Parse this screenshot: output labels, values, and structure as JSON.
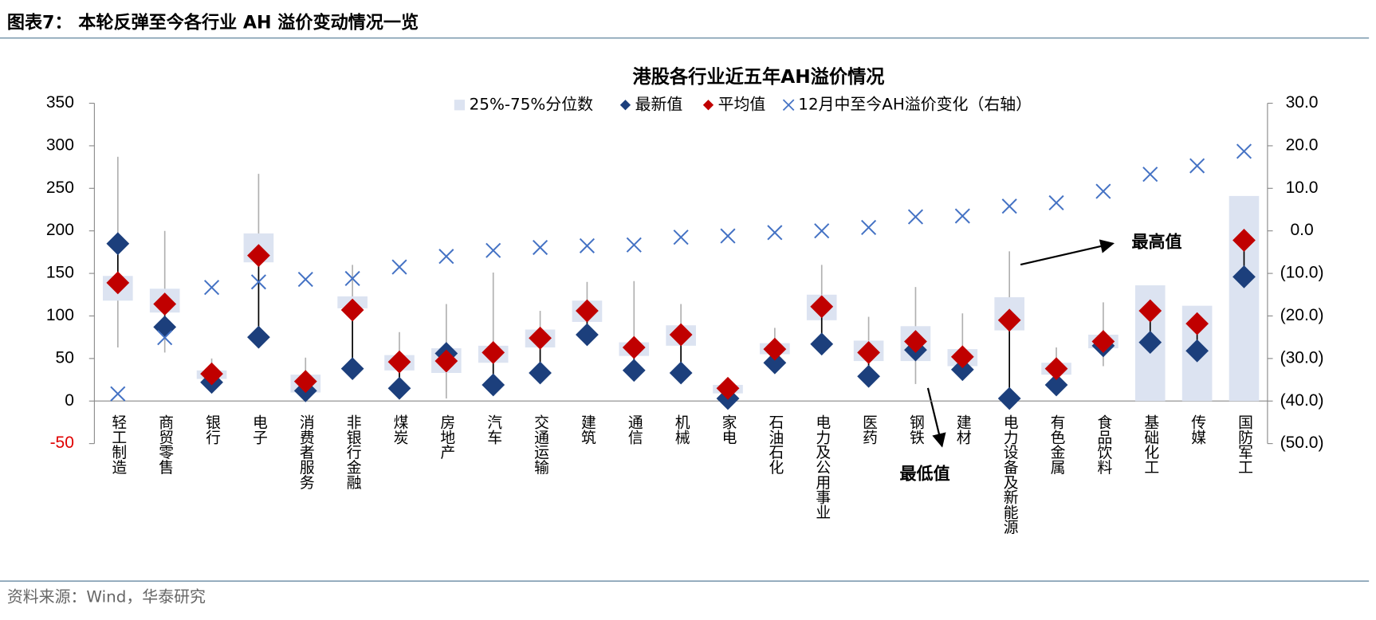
{
  "header": {
    "title": "图表7： 本轮反弹至今各行业 AH 溢价变动情况一览"
  },
  "chart_data": {
    "type": "range-dot",
    "title": "港股各行业近五年AH溢价情况",
    "categories": [
      "轻工制造",
      "商贸零售",
      "银行",
      "电子",
      "消费者服务",
      "非银行金融",
      "煤炭",
      "房地产",
      "汽车",
      "交通运输",
      "建筑",
      "通信",
      "机械",
      "家电",
      "石油石化",
      "电力及公用事业",
      "医药",
      "钢铁",
      "建材",
      "电力设备及新能源",
      "有色金属",
      "食品饮料",
      "基础化工",
      "传媒",
      "国防军工"
    ],
    "series": [
      {
        "name": "25%-75%分位数",
        "color": "#dce3f1",
        "p25": [
          118,
          104,
          26,
          163,
          10,
          109,
          36,
          33,
          45,
          63,
          93,
          53,
          65,
          9,
          55,
          95,
          47,
          47,
          41,
          83,
          31,
          62,
          0,
          0,
          0
        ],
        "p75": [
          147,
          132,
          36,
          197,
          31,
          123,
          54,
          62,
          65,
          84,
          118,
          69,
          89,
          19,
          68,
          125,
          71,
          88,
          61,
          122,
          45,
          78,
          136,
          112,
          241
        ]
      },
      {
        "name": "最新值",
        "color": "#1c3f7c",
        "values": [
          185,
          87,
          22,
          75,
          12,
          38,
          15,
          56,
          19,
          33,
          78,
          36,
          33,
          3,
          45,
          67,
          29,
          60,
          37,
          3,
          19,
          65,
          69,
          59,
          146
        ]
      },
      {
        "name": "平均值",
        "color": "#c00000",
        "values": [
          139,
          114,
          32,
          171,
          23,
          107,
          46,
          47,
          57,
          74,
          106,
          63,
          78,
          15,
          61,
          111,
          57,
          70,
          52,
          95,
          38,
          70,
          106,
          91,
          189
        ]
      },
      {
        "name": "12月中至今AH溢价变化（右轴）",
        "color": "#4472c4",
        "axis": "y2",
        "values": [
          -38.3,
          -25.1,
          -13.3,
          -12,
          -11.4,
          -11.2,
          -8.5,
          -6,
          -4.6,
          -3.9,
          -3.5,
          -3.3,
          -1.5,
          -1.2,
          -0.4,
          0,
          0.8,
          3.3,
          3.5,
          5.8,
          6.6,
          9.3,
          13.3,
          15.3,
          18.7
        ]
      }
    ],
    "whiskers": {
      "color": "#b0b0b0",
      "min": [
        63,
        57,
        20,
        62,
        6,
        38,
        12,
        3,
        16,
        33,
        78,
        36,
        33,
        3,
        45,
        67,
        29,
        20,
        24,
        3,
        19,
        41,
        null,
        null,
        null
      ],
      "max": [
        287,
        200,
        50,
        267,
        51,
        160,
        81,
        114,
        151,
        106,
        140,
        141,
        114,
        24,
        86,
        160,
        99,
        134,
        103,
        176,
        63,
        116,
        null,
        null,
        null
      ]
    },
    "ylim": [
      -50,
      350
    ],
    "yticks": [
      -50,
      0,
      50,
      100,
      150,
      200,
      250,
      300,
      350
    ],
    "y2lim": [
      -50,
      30
    ],
    "y2ticks": [
      {
        "value": -50,
        "label": "(50.0)"
      },
      {
        "value": -40,
        "label": "(40.0)"
      },
      {
        "value": -30,
        "label": "(30.0)"
      },
      {
        "value": -20,
        "label": "(20.0)"
      },
      {
        "value": -10,
        "label": "(10.0)"
      },
      {
        "value": 0,
        "label": "0.0"
      },
      {
        "value": 10,
        "label": "10.0"
      },
      {
        "value": 20,
        "label": "20.0"
      },
      {
        "value": 30,
        "label": "30.0"
      }
    ],
    "legend": "top",
    "annotations": [
      "最高值",
      "最低值"
    ]
  },
  "footer": {
    "source": "资料来源：Wind，华泰研究"
  }
}
